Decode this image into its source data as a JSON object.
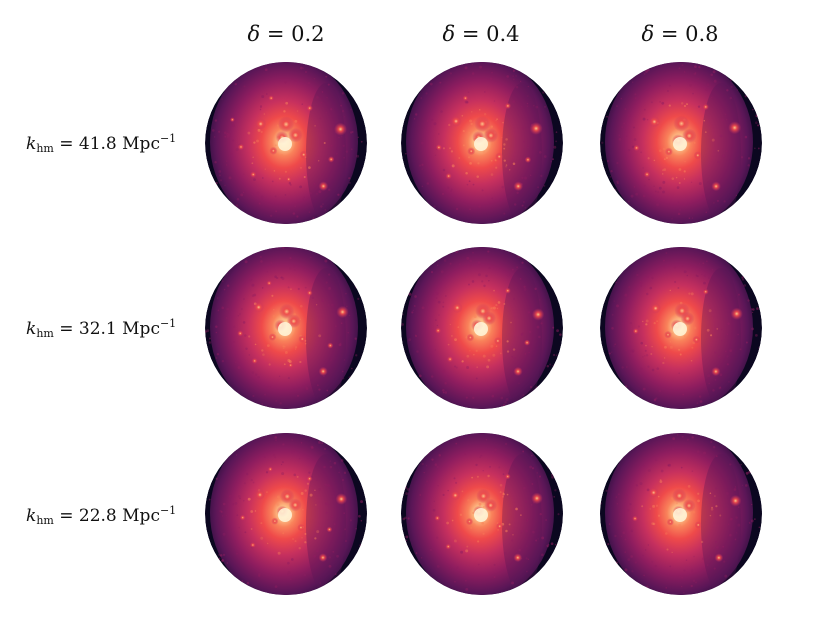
{
  "figure": {
    "columns": [
      {
        "symbol": "δ",
        "equals": " = ",
        "value": "0.2"
      },
      {
        "symbol": "δ",
        "equals": " = ",
        "value": "0.4"
      },
      {
        "symbol": "δ",
        "equals": " = ",
        "value": "0.8"
      }
    ],
    "rows": [
      {
        "symbol": "k",
        "subscript": "hm",
        "equals": " = ",
        "value": "41.8",
        "unit": " Mpc",
        "exponent": "−1"
      },
      {
        "symbol": "k",
        "subscript": "hm",
        "equals": " = ",
        "value": "32.1",
        "unit": " Mpc",
        "exponent": "−1"
      },
      {
        "symbol": "k",
        "subscript": "hm",
        "equals": " = ",
        "value": "22.8",
        "unit": " Mpc",
        "exponent": "−1"
      }
    ],
    "colormap": [
      "#0b0720",
      "#2a0f3d",
      "#5a1657",
      "#8f1d5f",
      "#c6305e",
      "#ef4a4a",
      "#f9825a",
      "#fdc68a",
      "#fff3d6"
    ]
  }
}
